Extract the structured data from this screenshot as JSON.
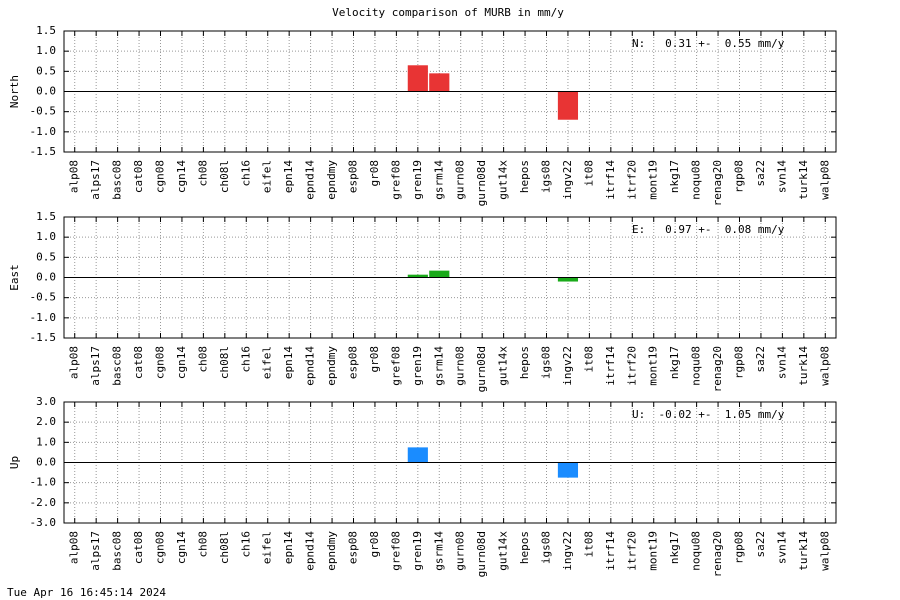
{
  "title": "Velocity comparison of MURB in mm/y",
  "timestamp": "Tue Apr 16 16:45:14 2024",
  "chart_data": [
    {
      "type": "bar",
      "ylabel": "North",
      "annotation": "N:   0.31 +-  0.55 mm/y",
      "color": "#e83434",
      "categories": [
        "alp08",
        "alps17",
        "basc08",
        "cat08",
        "cgn08",
        "cgn14",
        "ch08",
        "ch08l",
        "ch16",
        "eifel",
        "epn14",
        "epnd14",
        "epndmy",
        "esp08",
        "gr08",
        "gref08",
        "gren19",
        "gsrm14",
        "gurn08",
        "gurn08d",
        "gut14x",
        "hepos",
        "igs08",
        "ingv22",
        "it08",
        "itrf14",
        "itrf20",
        "mont19",
        "nkg17",
        "noqu08",
        "renag20",
        "rgp08",
        "sa22",
        "svn14",
        "turk14",
        "walp08"
      ],
      "values": [
        null,
        null,
        null,
        null,
        null,
        null,
        null,
        null,
        null,
        null,
        null,
        null,
        null,
        null,
        null,
        null,
        0.65,
        0.45,
        null,
        null,
        null,
        null,
        null,
        -0.7,
        null,
        null,
        null,
        null,
        null,
        null,
        null,
        null,
        null,
        null,
        null,
        null
      ],
      "ylim": [
        -1.5,
        1.5
      ],
      "yticks": [
        {
          "value": -1.5,
          "label": "-1.5"
        },
        {
          "value": -1,
          "label": "-1.0"
        },
        {
          "value": -0.5,
          "label": "-0.5"
        },
        {
          "value": 0,
          "label": "0.0"
        },
        0.5,
        {
          "value": 1,
          "label": "1.0"
        },
        1.5
      ],
      "grid": true
    },
    {
      "type": "bar",
      "ylabel": "East",
      "annotation": "E:   0.97 +-  0.08 mm/y",
      "color": "#1aaa1a",
      "categories": [
        "alp08",
        "alps17",
        "basc08",
        "cat08",
        "cgn08",
        "cgn14",
        "ch08",
        "ch08l",
        "ch16",
        "eifel",
        "epn14",
        "epnd14",
        "epndmy",
        "esp08",
        "gr08",
        "gref08",
        "gren19",
        "gsrm14",
        "gurn08",
        "gurn08d",
        "gut14x",
        "hepos",
        "igs08",
        "ingv22",
        "it08",
        "itrf14",
        "itrf20",
        "mont19",
        "nkg17",
        "noqu08",
        "renag20",
        "rgp08",
        "sa22",
        "svn14",
        "turk14",
        "walp08"
      ],
      "values": [
        null,
        null,
        null,
        null,
        null,
        null,
        null,
        null,
        null,
        null,
        null,
        null,
        null,
        null,
        null,
        null,
        0.07,
        0.17,
        null,
        null,
        null,
        null,
        null,
        -0.1,
        null,
        null,
        null,
        null,
        null,
        null,
        null,
        null,
        null,
        null,
        null,
        null
      ],
      "ylim": [
        -1.5,
        1.5
      ],
      "yticks": [
        {
          "value": -1.5,
          "label": "-1.5"
        },
        {
          "value": -1,
          "label": "-1.0"
        },
        {
          "value": -0.5,
          "label": "-0.5"
        },
        {
          "value": 0,
          "label": "0.0"
        },
        0.5,
        {
          "value": 1,
          "label": "1.0"
        },
        1.5
      ],
      "grid": true
    },
    {
      "type": "bar",
      "ylabel": "Up",
      "annotation": "U:  -0.02 +-  1.05 mm/y",
      "color": "#1a8cff",
      "categories": [
        "alp08",
        "alps17",
        "basc08",
        "cat08",
        "cgn08",
        "cgn14",
        "ch08",
        "ch08l",
        "ch16",
        "eifel",
        "epn14",
        "epnd14",
        "epndmy",
        "esp08",
        "gr08",
        "gref08",
        "gren19",
        "gsrm14",
        "gurn08",
        "gurn08d",
        "gut14x",
        "hepos",
        "igs08",
        "ingv22",
        "it08",
        "itrf14",
        "itrf20",
        "mont19",
        "nkg17",
        "noqu08",
        "renag20",
        "rgp08",
        "sa22",
        "svn14",
        "turk14",
        "walp08"
      ],
      "values": [
        null,
        null,
        null,
        null,
        null,
        null,
        null,
        null,
        null,
        null,
        null,
        null,
        null,
        null,
        null,
        null,
        0.75,
        null,
        null,
        null,
        null,
        null,
        null,
        -0.75,
        null,
        null,
        null,
        null,
        null,
        null,
        null,
        null,
        null,
        null,
        null,
        null
      ],
      "ylim": [
        -3,
        3
      ],
      "yticks": [
        {
          "value": -3,
          "label": "-3.0"
        },
        {
          "value": -2,
          "label": "-2.0"
        },
        {
          "value": -1,
          "label": "-1.0"
        },
        {
          "value": 0,
          "label": "0.0"
        },
        {
          "value": 1,
          "label": "1.0"
        },
        {
          "value": 2,
          "label": "2.0"
        },
        {
          "value": 3,
          "label": "3.0"
        }
      ],
      "grid": true
    }
  ]
}
